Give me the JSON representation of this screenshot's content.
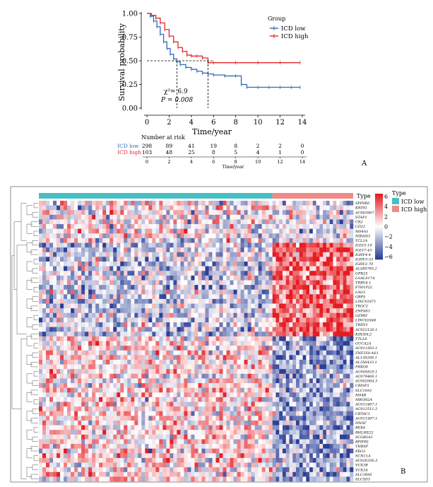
{
  "chart_data": [
    {
      "panel": "A",
      "type": "line",
      "subtype": "kaplan-meier",
      "xlabel": "Time/year",
      "ylabel": "Survival probability",
      "xlim": [
        0,
        14
      ],
      "ylim": [
        0,
        1
      ],
      "xticks": [
        "0",
        "2",
        "4",
        "6",
        "8",
        "10",
        "12",
        "14"
      ],
      "yticks": [
        "0.00",
        "0.25",
        "0.50",
        "0.75",
        "1.00"
      ],
      "legend": {
        "title": "Group",
        "position": "top-right"
      },
      "series": [
        {
          "name": "ICD low",
          "color": "#2f6bb9",
          "x": [
            0,
            0.3,
            0.6,
            0.9,
            1.2,
            1.5,
            1.8,
            2.1,
            2.4,
            2.7,
            3.0,
            3.5,
            4.0,
            4.5,
            5.0,
            5.5,
            6.0,
            7.0,
            8.0,
            8.5,
            9.0,
            10.0,
            11.0,
            12.0,
            13.0,
            13.8
          ],
          "y": [
            1.0,
            0.97,
            0.92,
            0.86,
            0.78,
            0.7,
            0.63,
            0.57,
            0.52,
            0.49,
            0.46,
            0.43,
            0.41,
            0.39,
            0.37,
            0.36,
            0.35,
            0.34,
            0.34,
            0.25,
            0.22,
            0.22,
            0.22,
            0.22,
            0.22,
            0.22
          ]
        },
        {
          "name": "ICD high",
          "color": "#e5282b",
          "x": [
            0,
            0.4,
            0.8,
            1.2,
            1.6,
            2.0,
            2.4,
            2.8,
            3.2,
            3.6,
            4.0,
            4.5,
            5.0,
            5.5,
            6.0,
            8.0,
            10.0,
            12.0,
            13.8
          ],
          "y": [
            1.0,
            0.98,
            0.95,
            0.9,
            0.83,
            0.76,
            0.7,
            0.64,
            0.6,
            0.56,
            0.55,
            0.55,
            0.53,
            0.48,
            0.48,
            0.48,
            0.48,
            0.48,
            0.48
          ]
        }
      ],
      "annotations": {
        "chisq": "χ²= 6.9",
        "p": "P = 0.008"
      },
      "risk_table": {
        "title": "Number at risk",
        "xlabel": "Time/year",
        "times": [
          "0",
          "2",
          "4",
          "6",
          "8",
          "10",
          "12",
          "14"
        ],
        "rows": [
          {
            "name": "ICD low",
            "color": "#2f6bb9",
            "values": [
              "298",
              "89",
              "41",
              "19",
              "8",
              "2",
              "2",
              "0"
            ]
          },
          {
            "name": "ICD high",
            "color": "#e5282b",
            "values": [
              "103",
              "48",
              "25",
              "8",
              "5",
              "4",
              "1",
              "0"
            ]
          }
        ]
      }
    },
    {
      "panel": "B",
      "type": "heatmap",
      "column_groups": [
        {
          "name": "ICD low",
          "color": "#48bfc4",
          "n": 298
        },
        {
          "name": "ICD high",
          "color": "#f08a86",
          "n": 103
        }
      ],
      "color_scale": {
        "min": -6,
        "max": 6,
        "low": "#2b3f97",
        "mid": "#ffffff",
        "high": "#e41c22",
        "ticks": [
          "6",
          "4",
          "2",
          "0",
          "−2",
          "−4",
          "−6"
        ]
      },
      "annotation_title": "Type",
      "row_clusters": [
        {
          "pattern": "mixed",
          "genes": [
            "SPINK6",
            "KRT81",
            "AC083967.1",
            "STAP1",
            "CR2",
            "CD22",
            "MS4A1",
            "NIBAN3",
            "TCL1A"
          ]
        },
        {
          "pattern": "high-up",
          "genes": [
            "IGLV3-19",
            "IGLV7-43",
            "IGHV4-4",
            "IGHV3-33",
            "IGHV2-70",
            "AL589765.2",
            "GPR25",
            "LGALS17A",
            "TRBV4-1",
            "FTH1P22",
            "LAG3",
            "GBP5",
            "LINC01871",
            "TRGC2",
            "ZNF683",
            "GZMH",
            "LINC02446",
            "TRDV1",
            "AC022126.1",
            "KIR3DL2"
          ]
        },
        {
          "pattern": "low-up",
          "genes": [
            "TTLL6",
            "GUCA2A",
            "AC011503.1",
            "ZNF350-AS1",
            "AL139288.1",
            "AL356433.1",
            "FBXO8",
            "AC005829.1",
            "AC079466.1",
            "AC002064.3",
            "CRISP3",
            "SLC10A1",
            "MS4B",
            "MROH2A",
            "AC012467.1",
            "AC012511.2",
            "CRTAC1",
            "AC011507.1",
            "NNAT",
            "BEX4",
            "BHLHE22",
            "SCGB2A1",
            "BPIFB1",
            "THBSP",
            "PEG3",
            "SCN11A",
            "AC026336.3",
            "VCX3B",
            "VCX3A",
            "SLC39A5",
            "SLC5D3"
          ]
        }
      ]
    }
  ],
  "labels": {
    "panel_a": "A",
    "panel_b": "B"
  }
}
